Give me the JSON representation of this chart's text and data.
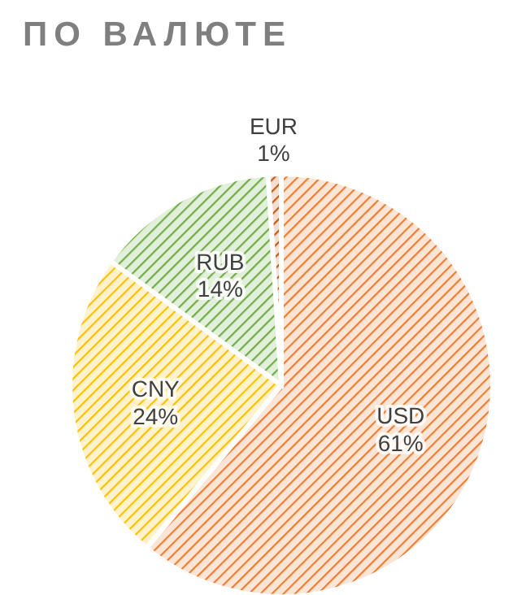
{
  "chart_data": {
    "type": "pie",
    "title": "ПО ВАЛЮТЕ",
    "categories": [
      "USD",
      "CNY",
      "RUB",
      "EUR"
    ],
    "values": [
      61,
      24,
      14,
      1
    ],
    "value_labels": [
      "61%",
      "24%",
      "14%",
      "1%"
    ],
    "colors": [
      "#ed7d31",
      "#ffc000",
      "#70ad47",
      "#c55a11"
    ]
  }
}
